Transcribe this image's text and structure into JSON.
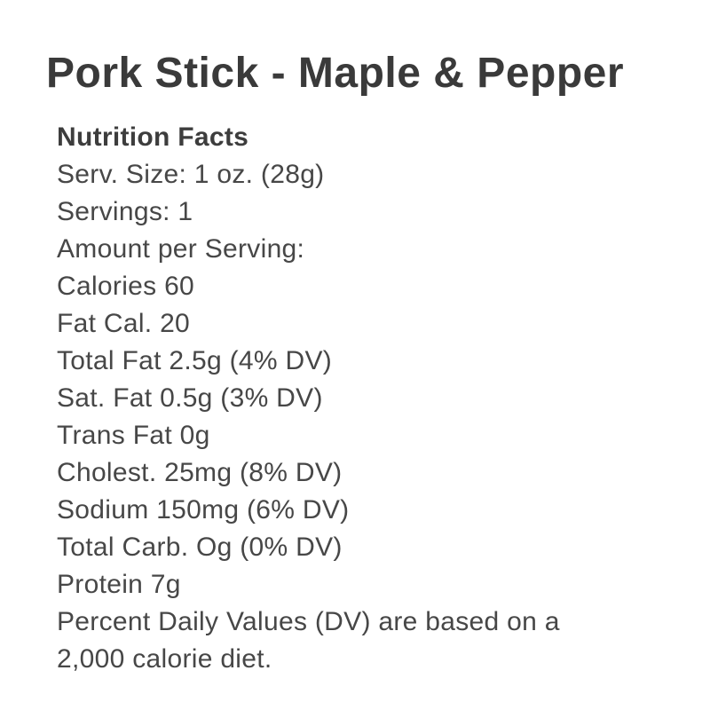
{
  "page": {
    "background_color": "#ffffff",
    "title_color": "#3a3a3a",
    "body_text_color": "#474747"
  },
  "product": {
    "title": "Pork Stick - Maple & Pepper"
  },
  "nutrition": {
    "heading": "Nutrition Facts",
    "lines": [
      "Serv. Size: 1 oz. (28g)",
      "Servings: 1",
      "Amount per Serving:",
      "Calories 60",
      "Fat Cal. 20",
      "Total Fat 2.5g (4% DV)",
      "Sat. Fat 0.5g (3% DV)",
      "Trans Fat 0g",
      "Cholest. 25mg (8% DV)",
      "Sodium 150mg (6% DV)",
      "Total Carb. Og (0% DV)",
      "Protein 7g"
    ],
    "footnote": "Percent Daily Values (DV) are based on a 2,000 calorie diet."
  }
}
